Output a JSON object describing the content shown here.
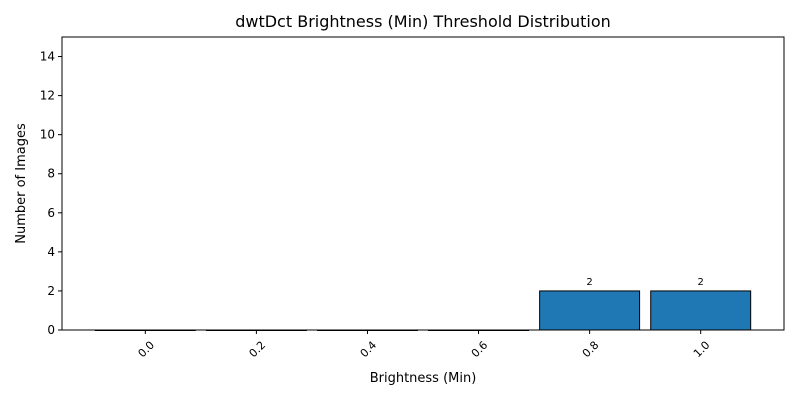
{
  "chart_data": {
    "type": "bar",
    "title": "dwtDct Brightness (Min) Threshold Distribution",
    "xlabel": "Brightness (Min)",
    "ylabel": "Number of Images",
    "categories": [
      "0.0",
      "0.2",
      "0.4",
      "0.6",
      "0.8",
      "1.0"
    ],
    "x": [
      0.0,
      0.2,
      0.4,
      0.6,
      0.8,
      1.0
    ],
    "values": [
      0,
      0,
      0,
      0,
      2,
      2
    ],
    "data_labels": [
      "",
      "",
      "",
      "",
      "2",
      "2"
    ],
    "ylim": [
      0,
      15
    ],
    "xlim": [
      -0.15,
      1.15
    ],
    "yticks": [
      0,
      2,
      4,
      6,
      8,
      10,
      12,
      14
    ],
    "ytick_labels": [
      "0",
      "2",
      "4",
      "6",
      "8",
      "10",
      "12",
      "14"
    ],
    "bar_width": 0.18,
    "grid": false,
    "legend": "none",
    "bar_color": "#1f77b4",
    "edge_color": "#000000"
  }
}
